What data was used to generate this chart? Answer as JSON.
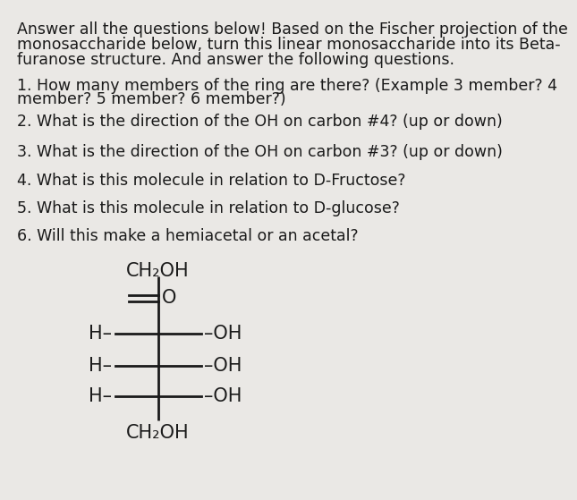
{
  "background_color": "#eae8e5",
  "text_color": "#1a1a1a",
  "intro_text": "Answer all the questions below! Based on the Fischer projection of the\nmonosaccharide below, turn this linear monosaccharide into its Beta-\nfuranose structure. And answer the following questions.",
  "questions": [
    "1. How many members of the ring are there? (Example 3 member? 4\nmember? 5 member? 6 member?)",
    "2. What is the direction of the OH on carbon #4? (up or down)",
    "3. What is the direction of the OH on carbon #3? (up or down)",
    "4. What is this molecule in relation to D-Fructose?",
    "5. What is this molecule in relation to D-glucose?",
    "6. Will this make a hemiacetal or an acetal?"
  ],
  "intro_fontsize": 12.5,
  "question_fontsize": 12.5,
  "structure_fontsize": 15,
  "fischer_top_label": "CH₂OH",
  "fischer_bottom_label": "CH₂OH",
  "carbonyl_label": "O"
}
